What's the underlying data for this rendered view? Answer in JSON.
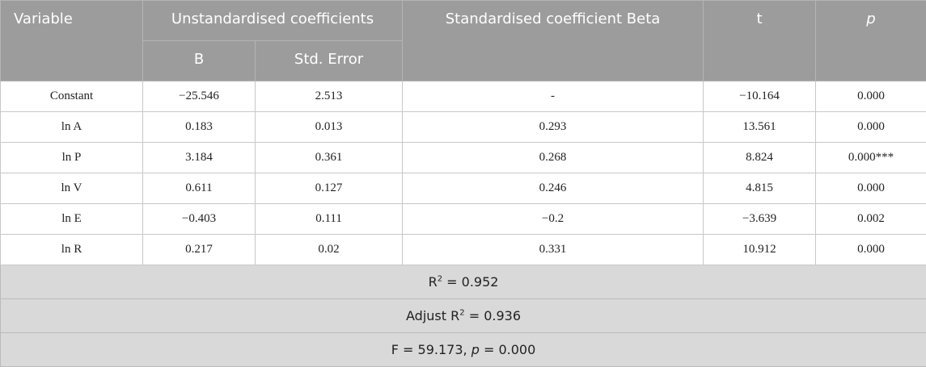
{
  "table": {
    "header": {
      "variable": "Variable",
      "unstandardised": "Unstandardised coefficients",
      "beta": "Standardised coefficient Beta",
      "t": "t",
      "p": "p",
      "b": "B",
      "std_error": "Std. Error"
    },
    "rows": [
      [
        "Constant",
        "−25.546",
        "2.513",
        "-",
        "−10.164",
        "0.000"
      ],
      [
        "ln A",
        "0.183",
        "0.013",
        "0.293",
        "13.561",
        "0.000"
      ],
      [
        "ln P",
        "3.184",
        "0.361",
        "0.268",
        "8.824",
        "0.000***"
      ],
      [
        "ln V",
        "0.611",
        "0.127",
        "0.246",
        "4.815",
        "0.000"
      ],
      [
        "ln E",
        "−0.403",
        "0.111",
        "−0.2",
        "−3.639",
        "0.002"
      ],
      [
        "ln R",
        "0.217",
        "0.02",
        "0.331",
        "10.912",
        "0.000"
      ]
    ],
    "footer": [
      [
        "R",
        "2",
        " = 0.952"
      ],
      [
        "Adjust R",
        "2",
        " = 0.936"
      ],
      [
        "F = 59.173, ",
        "p",
        " = 0.000"
      ]
    ]
  }
}
